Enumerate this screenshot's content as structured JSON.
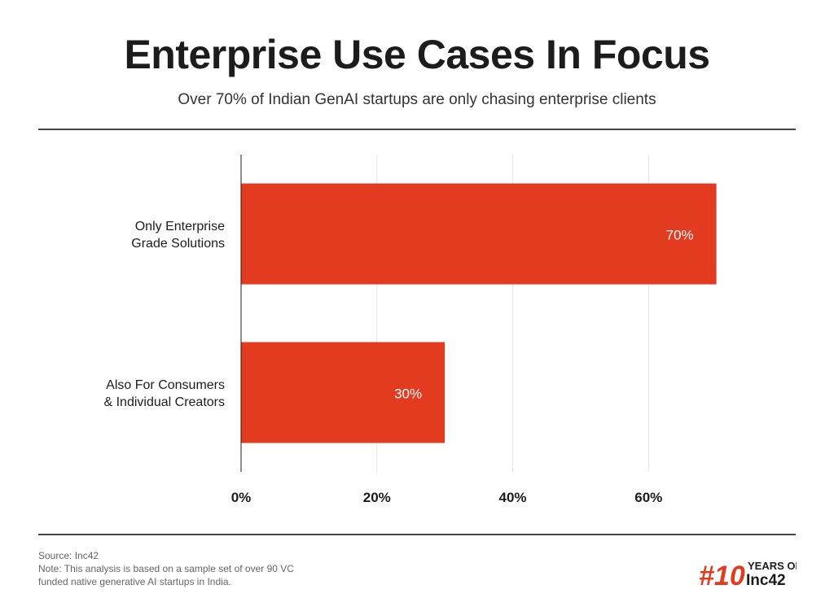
{
  "title": "Enterprise Use Cases In Focus",
  "subtitle": "Over 70% of Indian GenAI startups are only chasing enterprise clients",
  "chart_data": {
    "type": "bar",
    "orientation": "horizontal",
    "categories": [
      [
        "Only Enterprise",
        "Grade Solutions"
      ],
      [
        "Also For Consumers",
        "& Individual Creators"
      ]
    ],
    "values": [
      70,
      30
    ],
    "value_labels": [
      "70%",
      "30%"
    ],
    "xticks": [
      0,
      20,
      40,
      60
    ],
    "xtick_labels": [
      "0%",
      "20%",
      "40%",
      "60%"
    ],
    "xlim": [
      0,
      80
    ],
    "grid": true,
    "bar_color": "#e33b1f"
  },
  "footnote": {
    "source": "Source: Inc42",
    "note_line1": "Note: This analysis is based on a sample set of over 90 VC",
    "note_line2": "funded native generative AI startups in India."
  },
  "logo": {
    "number": "#10",
    "line1": "YEARS OF",
    "line2": "Inc42"
  },
  "colors": {
    "accent": "#e33b1f",
    "text": "#1c1c1c",
    "grid": "#e6e6e6"
  }
}
